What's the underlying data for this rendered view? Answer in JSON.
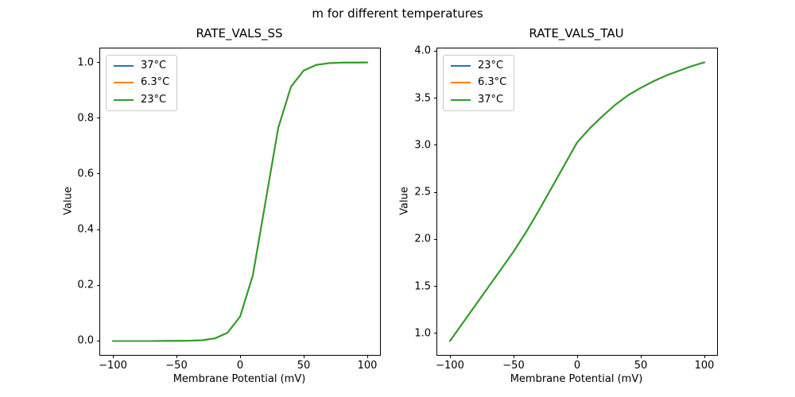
{
  "figure": {
    "suptitle": "m for different temperatures",
    "background_color": "#ffffff",
    "spine_color": "#000000"
  },
  "chart_data": [
    {
      "type": "line",
      "title": "RATE_VALS_SS",
      "xlabel": "Membrane Potential (mV)",
      "ylabel": "Value",
      "grid": false,
      "legend_position": "upper-left",
      "xlim": [
        -110,
        110
      ],
      "ylim": [
        -0.05,
        1.05
      ],
      "xticks": {
        "values": [
          -100,
          -50,
          0,
          50,
          100
        ],
        "labels": [
          "−100",
          "−50",
          "0",
          "50",
          "100"
        ]
      },
      "yticks": {
        "values": [
          0.0,
          0.2,
          0.4,
          0.6,
          0.8,
          1.0
        ],
        "labels": [
          "0.0",
          "0.2",
          "0.4",
          "0.6",
          "0.8",
          "1.0"
        ]
      },
      "x": [
        -100,
        -90,
        -80,
        -70,
        -60,
        -50,
        -40,
        -30,
        -20,
        -10,
        0,
        10,
        20,
        30,
        40,
        50,
        60,
        70,
        80,
        90,
        100
      ],
      "series": [
        {
          "name": "37°C",
          "color": "#1f77b4",
          "values": [
            0.0,
            0.0,
            0.0,
            0.0,
            0.0001,
            0.0003,
            0.0009,
            0.0028,
            0.0091,
            0.0291,
            0.0874,
            0.2353,
            0.5,
            0.7647,
            0.9126,
            0.9709,
            0.9909,
            0.9972,
            0.9991,
            0.9997,
            0.9999
          ]
        },
        {
          "name": "6.3°C",
          "color": "#ff7f0e",
          "values": [
            0.0,
            0.0,
            0.0,
            0.0,
            0.0001,
            0.0003,
            0.0009,
            0.0028,
            0.0091,
            0.0291,
            0.0874,
            0.2353,
            0.5,
            0.7647,
            0.9126,
            0.9709,
            0.9909,
            0.9972,
            0.9991,
            0.9997,
            0.9999
          ]
        },
        {
          "name": "23°C",
          "color": "#2ca02c",
          "values": [
            0.0,
            0.0,
            0.0,
            0.0,
            0.0001,
            0.0003,
            0.0009,
            0.0028,
            0.0091,
            0.0291,
            0.0874,
            0.2353,
            0.5,
            0.7647,
            0.9126,
            0.9709,
            0.9909,
            0.9972,
            0.9991,
            0.9997,
            0.9999
          ]
        }
      ]
    },
    {
      "type": "line",
      "title": "RATE_VALS_TAU",
      "xlabel": "Membrane Potential (mV)",
      "ylabel": "Value",
      "grid": false,
      "legend_position": "upper-left",
      "xlim": [
        -110,
        110
      ],
      "ylim": [
        0.772,
        4.028
      ],
      "xticks": {
        "values": [
          -100,
          -50,
          0,
          50,
          100
        ],
        "labels": [
          "−100",
          "−50",
          "0",
          "50",
          "100"
        ]
      },
      "yticks": {
        "values": [
          1.0,
          1.5,
          2.0,
          2.5,
          3.0,
          3.5,
          4.0
        ],
        "labels": [
          "1.0",
          "1.5",
          "2.0",
          "2.5",
          "3.0",
          "3.5",
          "4.0"
        ]
      },
      "x": [
        -100,
        -90,
        -80,
        -70,
        -60,
        -50,
        -40,
        -30,
        -20,
        -10,
        0,
        10,
        20,
        30,
        40,
        50,
        60,
        70,
        80,
        90,
        100
      ],
      "series": [
        {
          "name": "23°C",
          "color": "#1f77b4",
          "values": [
            0.92,
            1.11,
            1.3,
            1.49,
            1.68,
            1.87,
            2.08,
            2.31,
            2.55,
            2.79,
            3.03,
            3.18,
            3.31,
            3.43,
            3.53,
            3.61,
            3.68,
            3.74,
            3.79,
            3.84,
            3.88
          ]
        },
        {
          "name": "6.3°C",
          "color": "#ff7f0e",
          "values": [
            0.92,
            1.11,
            1.3,
            1.49,
            1.68,
            1.87,
            2.08,
            2.31,
            2.55,
            2.79,
            3.03,
            3.18,
            3.31,
            3.43,
            3.53,
            3.61,
            3.68,
            3.74,
            3.79,
            3.84,
            3.88
          ]
        },
        {
          "name": "37°C",
          "color": "#2ca02c",
          "values": [
            0.92,
            1.11,
            1.3,
            1.49,
            1.68,
            1.87,
            2.08,
            2.31,
            2.55,
            2.79,
            3.03,
            3.18,
            3.31,
            3.43,
            3.53,
            3.61,
            3.68,
            3.74,
            3.79,
            3.84,
            3.88
          ]
        }
      ]
    }
  ]
}
